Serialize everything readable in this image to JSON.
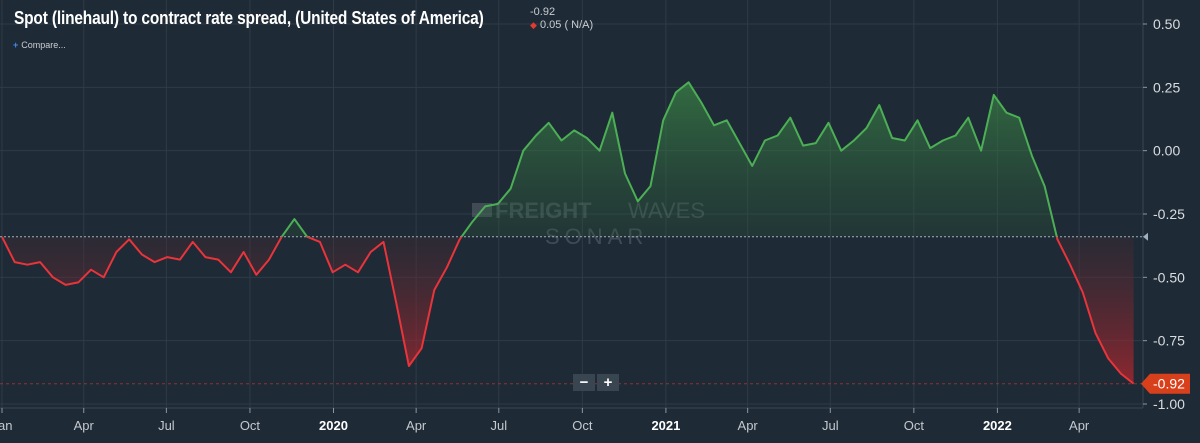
{
  "header": {
    "title": "Spot (linehaul) to contract rate spread, (United States of America)",
    "last_value": "-0.92",
    "change": "0.05 ( N/A)",
    "compare_label": "Compare..."
  },
  "watermark": {
    "line1_bold": "FREIGHT",
    "line1_light": "WAVES",
    "line2": "SONAR"
  },
  "zoom": {
    "minus": "−",
    "plus": "+"
  },
  "colors": {
    "background": "#1e2a35",
    "positive": "#4caf55",
    "negative": "#e8343a",
    "last_value_tag": "#d8401c",
    "grid": "#2f3b47"
  },
  "chart_data": {
    "type": "area",
    "title": "Spot (linehaul) to contract rate spread, (United States of America)",
    "ylim": [
      -1.0,
      0.5
    ],
    "yticks": [
      0.5,
      0.25,
      0.0,
      -0.25,
      -0.5,
      -0.75,
      -1.0
    ],
    "ytick_labels": [
      "0.50",
      "0.25",
      "0.00",
      "-0.25",
      "-0.50",
      "-0.75",
      "-1.00"
    ],
    "baseline": -0.34,
    "last_value": -0.92,
    "last_value_label": "-0.92",
    "xlim": [
      "2019-01-01",
      "2022-06-07"
    ],
    "xticks": [
      "2019-01-01",
      "2019-04-01",
      "2019-07-01",
      "2019-10-01",
      "2020-01-01",
      "2020-04-01",
      "2020-07-01",
      "2020-10-01",
      "2021-01-01",
      "2021-04-01",
      "2021-07-01",
      "2021-10-01",
      "2022-01-01",
      "2022-04-01"
    ],
    "xtick_labels": [
      "Jan",
      "Apr",
      "Jul",
      "Oct",
      "2020",
      "Apr",
      "Jul",
      "Oct",
      "2021",
      "Apr",
      "Jul",
      "Oct",
      "2022",
      "Apr"
    ],
    "grid": true,
    "series": [
      {
        "x": [
          "2019-01-01",
          "2019-01-15",
          "2019-01-29",
          "2019-02-12",
          "2019-02-26",
          "2019-03-12",
          "2019-03-26",
          "2019-04-09",
          "2019-04-23",
          "2019-05-07",
          "2019-05-21",
          "2019-06-04",
          "2019-06-18",
          "2019-07-02",
          "2019-07-16",
          "2019-07-30",
          "2019-08-13",
          "2019-08-27",
          "2019-09-10",
          "2019-09-24",
          "2019-10-08",
          "2019-10-22",
          "2019-11-05",
          "2019-11-19",
          "2019-12-03",
          "2019-12-17",
          "2019-12-31",
          "2020-01-14",
          "2020-01-28",
          "2020-02-11",
          "2020-02-25",
          "2020-03-10",
          "2020-03-24",
          "2020-04-07",
          "2020-04-21",
          "2020-05-05",
          "2020-05-19",
          "2020-06-02",
          "2020-06-16",
          "2020-06-30",
          "2020-07-14",
          "2020-07-28",
          "2020-08-11",
          "2020-08-25",
          "2020-09-08",
          "2020-09-22",
          "2020-10-06",
          "2020-10-20",
          "2020-11-03",
          "2020-11-17",
          "2020-12-01",
          "2020-12-15",
          "2020-12-29",
          "2021-01-12",
          "2021-01-26",
          "2021-02-09",
          "2021-02-23",
          "2021-03-09",
          "2021-03-23",
          "2021-04-06",
          "2021-04-20",
          "2021-05-04",
          "2021-05-18",
          "2021-06-01",
          "2021-06-15",
          "2021-06-29",
          "2021-07-13",
          "2021-07-27",
          "2021-08-10",
          "2021-08-24",
          "2021-09-07",
          "2021-09-21",
          "2021-10-05",
          "2021-10-19",
          "2021-11-02",
          "2021-11-16",
          "2021-11-30",
          "2021-12-14",
          "2021-12-28",
          "2022-01-11",
          "2022-01-25",
          "2022-02-08",
          "2022-02-22",
          "2022-03-08",
          "2022-03-22",
          "2022-04-05",
          "2022-04-19",
          "2022-05-03",
          "2022-05-17",
          "2022-05-31"
        ],
        "values": [
          -0.34,
          -0.44,
          -0.45,
          -0.44,
          -0.5,
          -0.53,
          -0.52,
          -0.47,
          -0.5,
          -0.4,
          -0.35,
          -0.41,
          -0.44,
          -0.42,
          -0.43,
          -0.36,
          -0.42,
          -0.43,
          -0.48,
          -0.4,
          -0.49,
          -0.43,
          -0.34,
          -0.27,
          -0.34,
          -0.36,
          -0.48,
          -0.45,
          -0.48,
          -0.4,
          -0.36,
          -0.6,
          -0.85,
          -0.78,
          -0.55,
          -0.46,
          -0.35,
          -0.28,
          -0.22,
          -0.21,
          -0.15,
          0.0,
          0.06,
          0.11,
          0.04,
          0.08,
          0.05,
          0.0,
          0.15,
          -0.09,
          -0.2,
          -0.14,
          0.12,
          0.23,
          0.27,
          0.19,
          0.1,
          0.12,
          0.03,
          -0.06,
          0.04,
          0.06,
          0.13,
          0.02,
          0.03,
          0.11,
          0.0,
          0.04,
          0.09,
          0.18,
          0.05,
          0.04,
          0.12,
          0.01,
          0.04,
          0.06,
          0.13,
          0.0,
          0.22,
          0.15,
          0.13,
          -0.02,
          -0.14,
          -0.35,
          -0.45,
          -0.56,
          -0.72,
          -0.82,
          -0.88,
          -0.92
        ]
      }
    ]
  }
}
